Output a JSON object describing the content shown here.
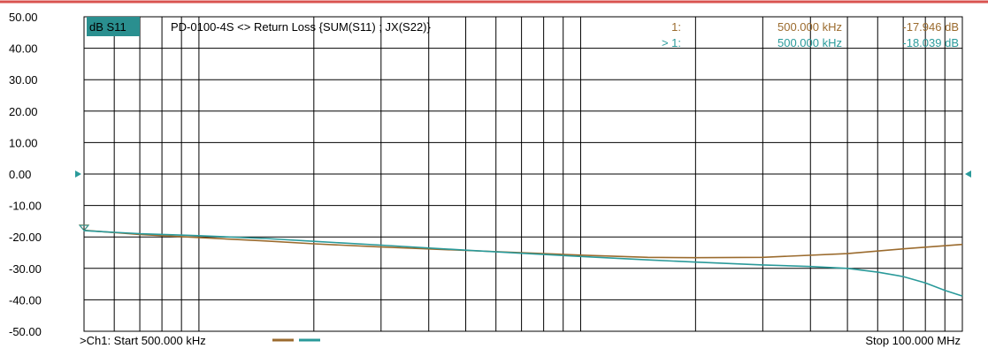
{
  "colors": {
    "background": "#ffffff",
    "grid": "#000000",
    "frame_accent": "#d9534f",
    "trace1": "#9b6b2e",
    "trace2": "#2a9a9a",
    "badge_bg": "#2a8f8f"
  },
  "header": {
    "badge_label": "dB S11",
    "title": "PD-0100-4S <> Return Loss {SUM(S11) ; JX(S22)}"
  },
  "markers": [
    {
      "label": "1:",
      "freq": "500.000 kHz",
      "value": "-17.946 dB",
      "color": "#9b6b2e"
    },
    {
      "label": "> 1:",
      "freq": "500.000 kHz",
      "value": "-18.039 dB",
      "color": "#2a9a9a"
    }
  ],
  "footer": {
    "start_label": ">Ch1: Start  500.000 kHz",
    "stop_label": "Stop  100.000 MHz"
  },
  "reference_arrow_icon": "triangle-right-icon",
  "chart_data": {
    "type": "line",
    "title": "PD-0100-4S <> Return Loss {SUM(S11) ; JX(S22)}",
    "xlabel": "",
    "ylabel": "",
    "x_scale": "log",
    "x_unit": "MHz",
    "xlim": [
      0.5,
      100
    ],
    "ylim": [
      -50,
      50
    ],
    "y_ticks": [
      50,
      40,
      30,
      20,
      10,
      0,
      -10,
      -20,
      -30,
      -40,
      -50
    ],
    "y_tick_labels": [
      "50.00",
      "40.00",
      "30.00",
      "20.00",
      "10.00",
      "0.00",
      "-10.00",
      "-20.00",
      "-30.00",
      "-40.00",
      "-50.00"
    ],
    "grid": true,
    "reference_level": 0,
    "series": [
      {
        "x": [
          0.5,
          0.7,
          1,
          1.5,
          2,
          3,
          5,
          7,
          10,
          15,
          20,
          30,
          50,
          70,
          100
        ],
        "y": [
          -17.9,
          -19.2,
          -20.2,
          -21.3,
          -22.2,
          -23.2,
          -24.3,
          -25.0,
          -25.8,
          -26.5,
          -26.6,
          -26.5,
          -25.3,
          -23.8,
          -22.4
        ]
      },
      {
        "x": [
          0.5,
          0.7,
          1,
          1.5,
          2,
          3,
          5,
          7,
          10,
          15,
          20,
          30,
          40,
          50,
          60,
          70,
          80,
          90,
          100
        ],
        "y": [
          -18.0,
          -19.0,
          -19.6,
          -20.5,
          -21.4,
          -22.6,
          -24.2,
          -25.2,
          -26.2,
          -27.3,
          -28.0,
          -28.9,
          -29.4,
          -30.0,
          -31.2,
          -32.6,
          -34.6,
          -37.0,
          -38.8
        ]
      }
    ]
  }
}
